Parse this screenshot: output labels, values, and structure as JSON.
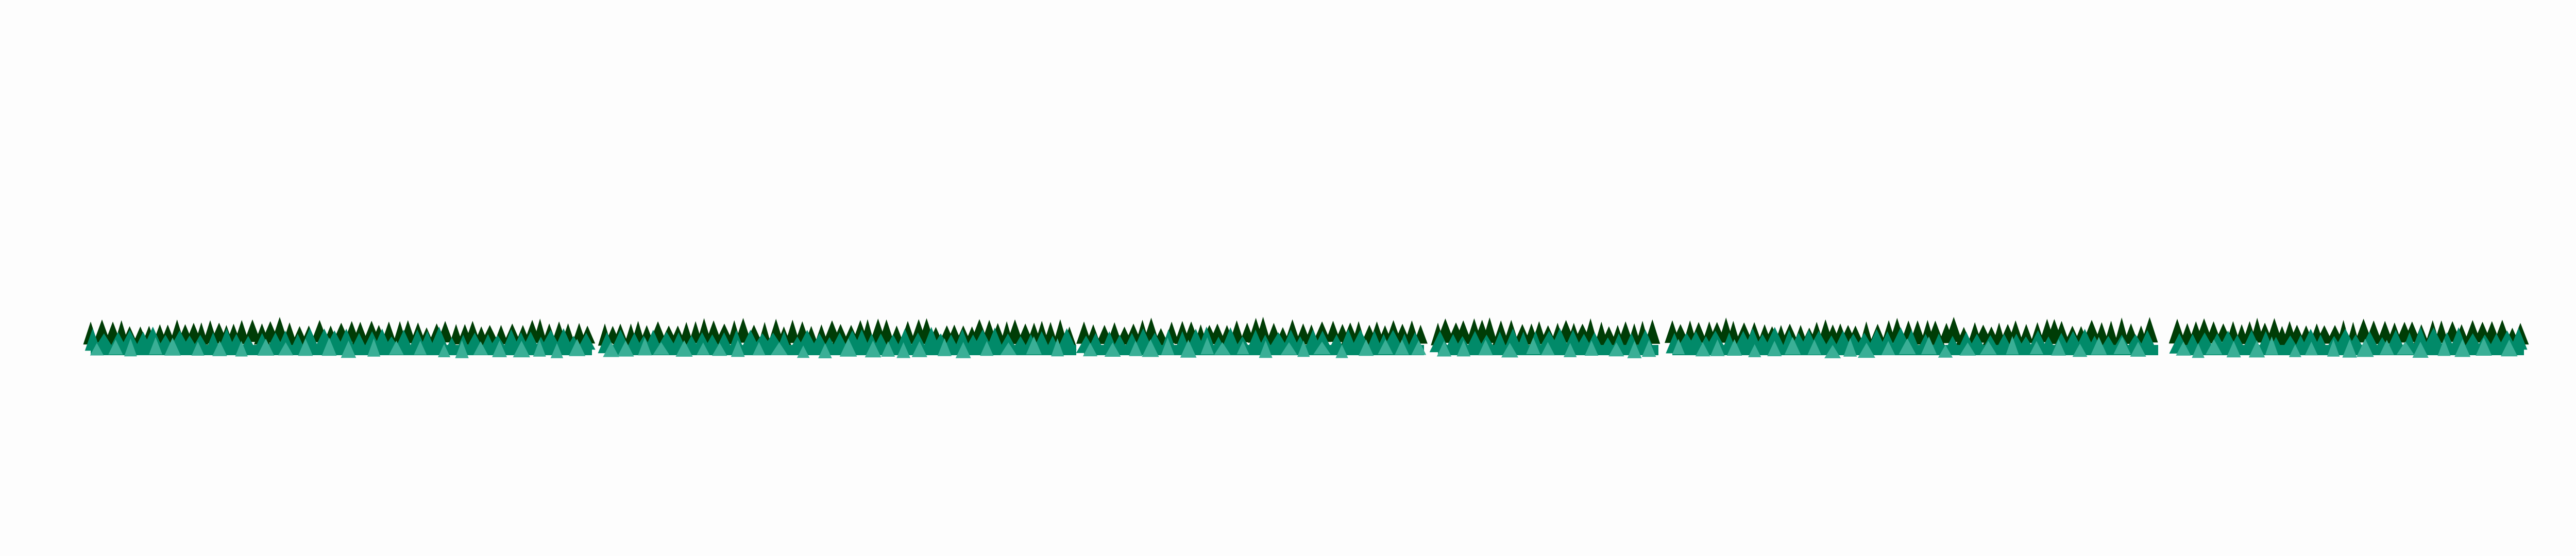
{
  "scene": {
    "background_color": "#fdfdfd",
    "segment_count": 5,
    "layers": [
      {
        "name": "back-row",
        "color": "#003d06"
      },
      {
        "name": "mid-row",
        "color": "#018a69"
      },
      {
        "name": "front-row",
        "color": "#3aaf96"
      }
    ],
    "icon_shape": "tree-icon"
  }
}
